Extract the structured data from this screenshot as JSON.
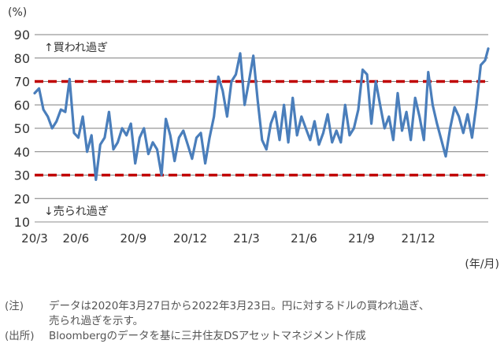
{
  "chart_data": {
    "type": "line",
    "y_unit": "(%)",
    "x_unit": "(年/月)",
    "ylim": [
      10,
      90
    ],
    "yticks": [
      10,
      20,
      30,
      40,
      50,
      60,
      70,
      80,
      90
    ],
    "x_tick_labels": [
      "20/3",
      "20/6",
      "20/9",
      "20/12",
      "21/3",
      "21/6",
      "21/9",
      "21/12"
    ],
    "grid": true,
    "thresholds": [
      {
        "value": 70,
        "color": "#c00000",
        "style": "dashed"
      },
      {
        "value": 30,
        "color": "#c00000",
        "style": "dashed"
      }
    ],
    "annotations": [
      {
        "text": "↑買われ過ぎ",
        "y": 85
      },
      {
        "text": "↓売られ過ぎ",
        "y": 15
      }
    ],
    "series": [
      {
        "color": "#4a7ebb",
        "x": [
          "2020-03-27",
          "2020-04-03",
          "2020-04-10",
          "2020-04-17",
          "2020-04-24",
          "2020-05-01",
          "2020-05-08",
          "2020-05-15",
          "2020-05-22",
          "2020-05-29",
          "2020-06-05",
          "2020-06-12",
          "2020-06-19",
          "2020-06-26",
          "2020-07-03",
          "2020-07-10",
          "2020-07-17",
          "2020-07-24",
          "2020-07-31",
          "2020-08-07",
          "2020-08-14",
          "2020-08-21",
          "2020-08-28",
          "2020-09-04",
          "2020-09-11",
          "2020-09-18",
          "2020-09-25",
          "2020-10-02",
          "2020-10-09",
          "2020-10-16",
          "2020-10-23",
          "2020-10-30",
          "2020-11-06",
          "2020-11-13",
          "2020-11-20",
          "2020-11-27",
          "2020-12-04",
          "2020-12-11",
          "2020-12-18",
          "2020-12-25",
          "2021-01-01",
          "2021-01-08",
          "2021-01-15",
          "2021-01-22",
          "2021-01-29",
          "2021-02-05",
          "2021-02-12",
          "2021-02-19",
          "2021-02-26",
          "2021-03-05",
          "2021-03-12",
          "2021-03-19",
          "2021-03-26",
          "2021-04-02",
          "2021-04-09",
          "2021-04-16",
          "2021-04-23",
          "2021-04-30",
          "2021-05-07",
          "2021-05-14",
          "2021-05-21",
          "2021-05-28",
          "2021-06-04",
          "2021-06-11",
          "2021-06-18",
          "2021-06-25",
          "2021-07-02",
          "2021-07-09",
          "2021-07-16",
          "2021-07-23",
          "2021-07-30",
          "2021-08-06",
          "2021-08-13",
          "2021-08-20",
          "2021-08-27",
          "2021-09-03",
          "2021-09-10",
          "2021-09-17",
          "2021-09-24",
          "2021-10-01",
          "2021-10-08",
          "2021-10-15",
          "2021-10-22",
          "2021-10-29",
          "2021-11-05",
          "2021-11-12",
          "2021-11-19",
          "2021-11-26",
          "2021-12-03",
          "2021-12-10",
          "2021-12-17",
          "2021-12-24",
          "2021-12-31",
          "2022-01-07",
          "2022-01-14",
          "2022-01-21",
          "2022-01-28",
          "2022-02-04",
          "2022-02-11",
          "2022-02-18",
          "2022-02-25",
          "2022-03-04",
          "2022-03-11",
          "2022-03-18",
          "2022-03-23"
        ],
        "values": [
          65,
          67,
          58,
          55,
          50,
          53,
          58,
          57,
          71,
          48,
          46,
          55,
          40,
          47,
          28,
          43,
          46,
          57,
          41,
          44,
          50,
          47,
          52,
          35,
          46,
          50,
          39,
          44,
          41,
          30,
          54,
          47,
          36,
          46,
          49,
          43,
          37,
          46,
          48,
          35,
          46,
          55,
          72,
          66,
          55,
          70,
          73,
          82,
          60,
          70,
          81,
          62,
          45,
          41,
          52,
          57,
          45,
          60,
          44,
          63,
          47,
          55,
          50,
          45,
          53,
          43,
          48,
          56,
          44,
          49,
          44,
          60,
          47,
          50,
          58,
          75,
          73,
          52,
          70,
          60,
          50,
          55,
          45,
          65,
          49,
          57,
          45,
          63,
          55,
          45,
          74,
          60,
          52,
          45,
          38,
          50,
          59,
          55,
          48,
          56,
          46,
          60,
          77,
          79,
          84
        ]
      }
    ]
  },
  "footnotes": [
    {
      "label": "(注)",
      "lines": [
        "データは2020年3月27日から2022年3月23日。円に対するドルの買われ過ぎ、",
        "売られ過ぎを示す。"
      ]
    },
    {
      "label": "(出所)",
      "lines": [
        "Bloombergのデータを基に三井住友DSアセットマネジメント作成"
      ]
    }
  ]
}
